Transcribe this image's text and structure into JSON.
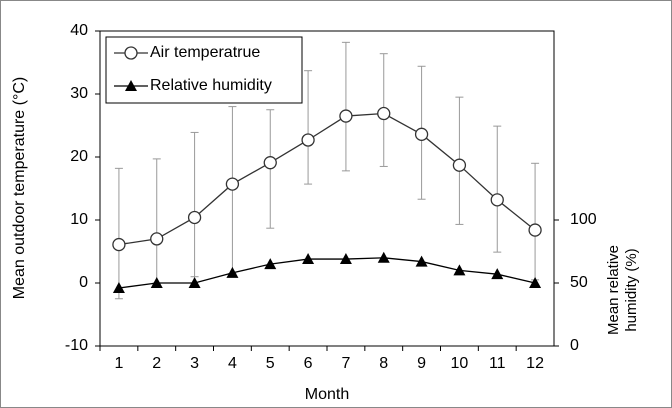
{
  "chart_data": {
    "type": "line",
    "x_label": "Month",
    "y_label": "Mean outdoor temperature (°C)",
    "y2_label": [
      "Mean relative",
      "humidity (%)"
    ],
    "categories": [
      "1",
      "2",
      "3",
      "4",
      "5",
      "6",
      "7",
      "8",
      "9",
      "10",
      "11",
      "12"
    ],
    "ylim": [
      -10,
      40
    ],
    "yticks": [
      -10,
      0,
      10,
      20,
      30,
      40
    ],
    "y2lim": [
      0,
      250
    ],
    "y2ticks": [
      0,
      50,
      100
    ],
    "legend": "upper left",
    "series": [
      {
        "name": "Air temperatrue",
        "color": "#333333",
        "marker": "circle",
        "values": [
          6.1,
          7.0,
          10.4,
          15.7,
          19.1,
          22.7,
          26.5,
          26.9,
          23.6,
          18.7,
          13.2,
          8.4
        ],
        "err_plus": [
          12.1,
          12.7,
          13.5,
          12.3,
          8.4,
          11.0,
          11.7,
          9.5,
          10.8,
          10.8,
          11.7,
          10.6
        ],
        "err_minus": [
          8.6,
          7.0,
          9.4,
          14.2,
          10.4,
          7.0,
          8.7,
          8.4,
          10.3,
          9.4,
          8.3,
          7.9
        ]
      },
      {
        "name": "Relative humidity",
        "color": "#000000",
        "marker": "triangle",
        "axis": "y2",
        "values": [
          46,
          50,
          50,
          58,
          65,
          69,
          69,
          70,
          67,
          60,
          57,
          50
        ]
      }
    ]
  }
}
